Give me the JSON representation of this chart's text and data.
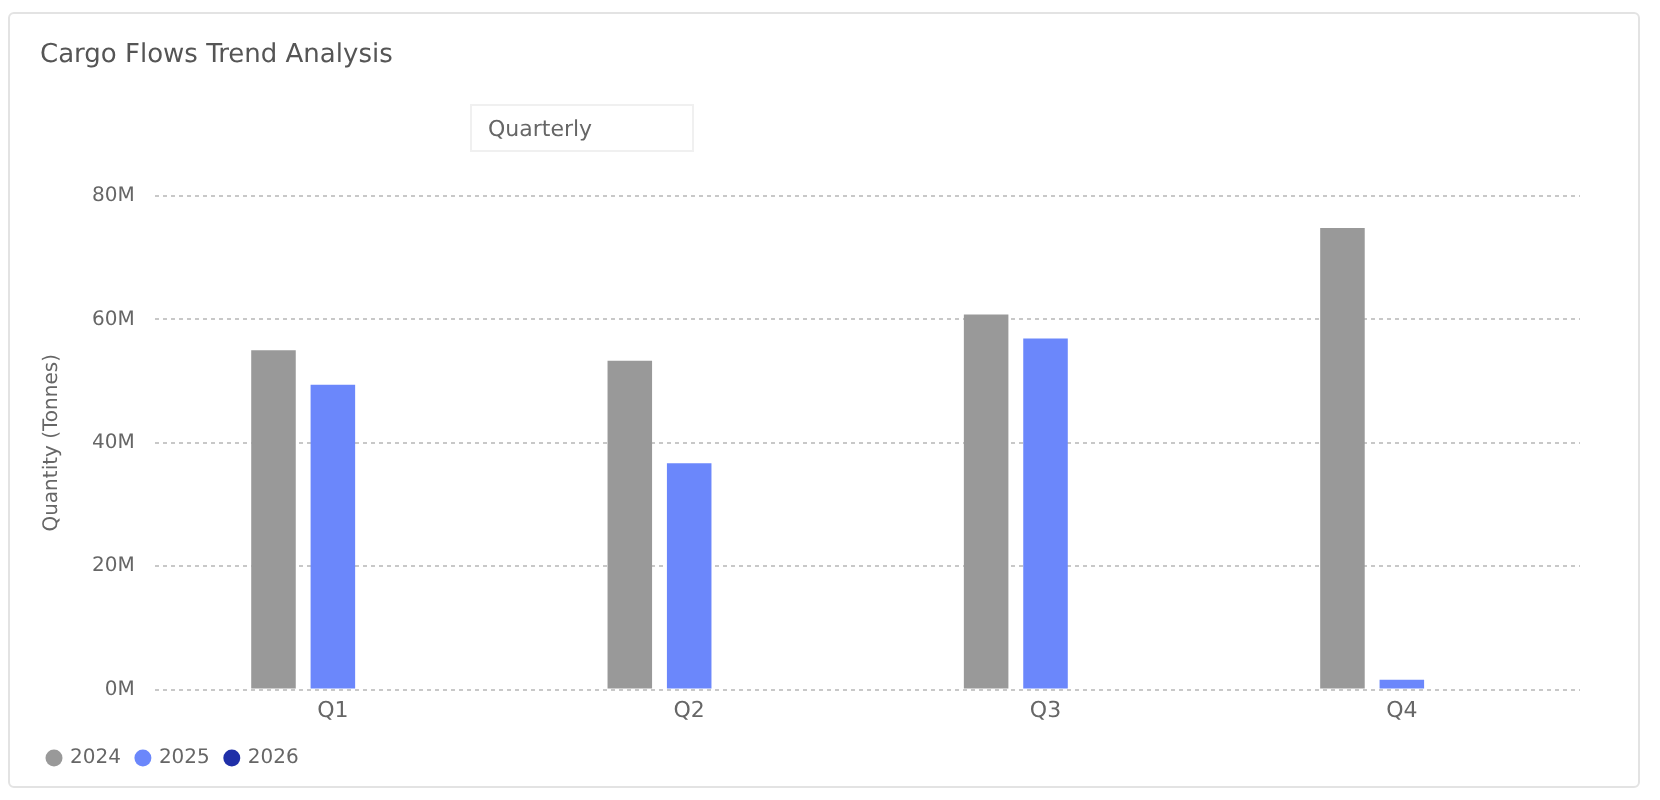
{
  "chart_data": {
    "type": "bar",
    "title": "Cargo Flows Trend Analysis",
    "subtitle": "Quarterly",
    "ylabel": "Quantity (Tonnes)",
    "categories": [
      "Q1",
      "Q2",
      "Q3",
      "Q4"
    ],
    "series": [
      {
        "name": "2024",
        "color": "#999999",
        "values": [
          55,
          53.3,
          60.8,
          74.8
        ]
      },
      {
        "name": "2025",
        "color": "#6b87fb",
        "values": [
          49.4,
          36.7,
          56.9,
          1.6
        ]
      },
      {
        "name": "2026",
        "color": "#1f2fa8",
        "values": [
          null,
          null,
          null,
          null
        ]
      }
    ],
    "ylim": [
      0,
      80
    ],
    "yticks": [
      {
        "value": 0,
        "label": "0M"
      },
      {
        "value": 20,
        "label": "20M"
      },
      {
        "value": 40,
        "label": "40M"
      },
      {
        "value": 60,
        "label": "60M"
      },
      {
        "value": 80,
        "label": "80M"
      }
    ],
    "grid": "y",
    "legend": "bottom left"
  }
}
